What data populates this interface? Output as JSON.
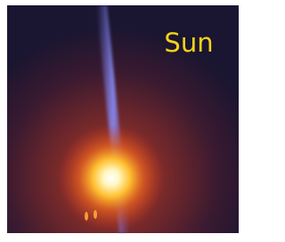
{
  "label": "Sun"
}
